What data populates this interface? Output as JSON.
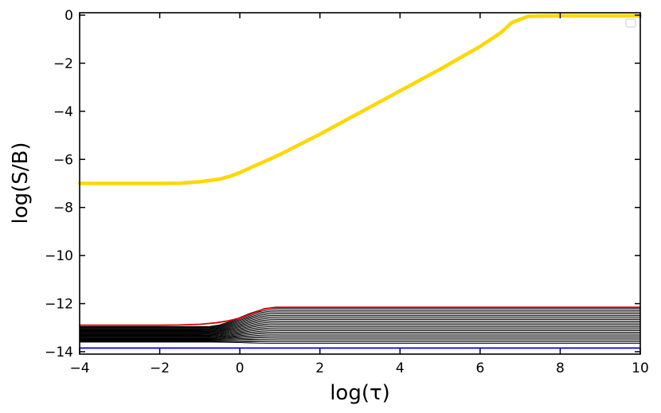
{
  "chart_data": {
    "type": "line",
    "title": "",
    "xlabel": "log(τ)",
    "ylabel": "log(S/B)",
    "xlim": [
      -4,
      10
    ],
    "ylim": [
      -14.1,
      0.1
    ],
    "xticks": [
      -4,
      -2,
      0,
      2,
      4,
      6,
      8,
      10
    ],
    "xtick_labels": [
      "−4",
      "−2",
      "0",
      "2",
      "4",
      "6",
      "8",
      "10"
    ],
    "yticks": [
      0,
      -2,
      -4,
      -6,
      -8,
      -10,
      -12,
      -14
    ],
    "ytick_labels": [
      "0",
      "−2",
      "−4",
      "−6",
      "−8",
      "−10",
      "−12",
      "−14"
    ],
    "grid": false,
    "legend": {
      "position": "top-right",
      "entries": []
    },
    "series": [
      {
        "color": "#FFD700",
        "x": [
          -4,
          -3,
          -2,
          -1.5,
          -1,
          -0.5,
          -0.2,
          0,
          0.3,
          0.6,
          1,
          2,
          3,
          4,
          5,
          6,
          6.5,
          6.8,
          7.2,
          8,
          9,
          10
        ],
        "y": [
          -7.0,
          -7.0,
          -7.0,
          -6.99,
          -6.93,
          -6.82,
          -6.68,
          -6.55,
          -6.32,
          -6.1,
          -5.8,
          -4.95,
          -4.05,
          -3.15,
          -2.25,
          -1.3,
          -0.75,
          -0.3,
          -0.05,
          -0.03,
          -0.03,
          -0.03
        ]
      },
      {
        "color": "#e00000",
        "x": [
          -4,
          -3,
          -2,
          -1.5,
          -1,
          -0.6,
          -0.3,
          0,
          0.3,
          0.6,
          0.9,
          2,
          4,
          6,
          8,
          10
        ],
        "y": [
          -12.9,
          -12.9,
          -12.9,
          -12.89,
          -12.86,
          -12.8,
          -12.72,
          -12.6,
          -12.42,
          -12.22,
          -12.15,
          -12.15,
          -12.15,
          -12.15,
          -12.15,
          -12.15
        ]
      },
      {
        "color": "#0000ee",
        "x": [
          -4,
          10
        ],
        "y": [
          -13.85,
          -13.85
        ]
      }
    ],
    "band": {
      "color": "#000000",
      "count": 26,
      "y_left_top": -12.95,
      "y_left_bottom": -13.6,
      "y_right_top": -12.2,
      "y_right_bottom": -13.65
    }
  }
}
